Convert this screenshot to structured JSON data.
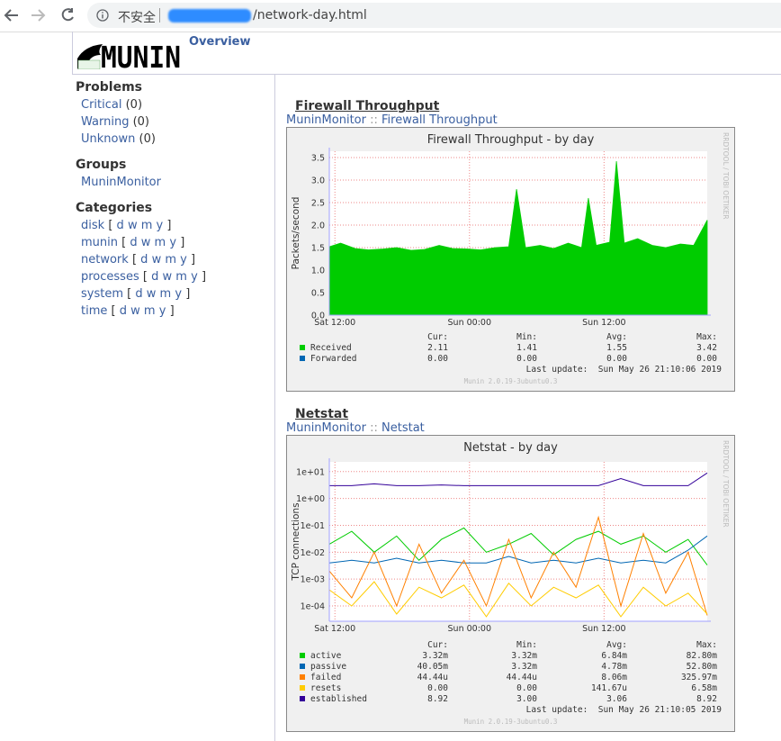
{
  "browser": {
    "security": "不安全",
    "url": "/network-day.html"
  },
  "header": {
    "logo": "MUNIN",
    "nav": "Overview"
  },
  "sidebar": {
    "problems": {
      "title": "Problems",
      "items": [
        {
          "label": "Critical",
          "count": "(0)"
        },
        {
          "label": "Warning",
          "count": "(0)"
        },
        {
          "label": "Unknown",
          "count": "(0)"
        }
      ]
    },
    "groups": {
      "title": "Groups",
      "items": [
        "MuninMonitor"
      ]
    },
    "categories": {
      "title": "Categories",
      "brackets": [
        "[",
        "]"
      ],
      "periods": [
        "d",
        "w",
        "m",
        "y"
      ],
      "items": [
        "disk",
        "munin",
        "network",
        "processes",
        "system",
        "time"
      ]
    }
  },
  "chart_data": [
    {
      "type": "area",
      "heading": "Firewall Throughput",
      "breadcrumb": [
        "MuninMonitor",
        "::",
        "Firewall Throughput"
      ],
      "title": "Firewall Throughput - by day",
      "ylabel": "Packets/second",
      "side_text": "RRDTOOL / TOBI OETIKER",
      "grid": true,
      "yscale": "linear",
      "ylim": [
        0,
        3.64
      ],
      "yticks": [
        {
          "value": 0,
          "label": "0.0"
        },
        {
          "value": 0.5,
          "label": "0.5"
        },
        {
          "value": 1,
          "label": "1.0"
        },
        {
          "value": 1.5,
          "label": "1.5"
        },
        {
          "value": 2,
          "label": "2.0"
        },
        {
          "value": 2.5,
          "label": "2.5"
        },
        {
          "value": 3,
          "label": "3.0"
        },
        {
          "value": 3.5,
          "label": "3.5"
        }
      ],
      "xlim": [
        11.5,
        45.2
      ],
      "xticks": [
        {
          "value": 12,
          "label": "Sat 12:00"
        },
        {
          "value": 24,
          "label": "Sun 00:00"
        },
        {
          "value": 36,
          "label": "Sun 12:00"
        }
      ],
      "x": [
        11.5,
        12.5,
        13.8,
        15,
        16.3,
        17.5,
        18.8,
        20,
        21.3,
        22.5,
        23.8,
        25,
        26.3,
        27.5,
        28.2,
        29,
        30.3,
        31.5,
        32.8,
        34,
        34.6,
        35.3,
        36.5,
        37.1,
        37.8,
        39,
        40.3,
        41.5,
        42.8,
        44,
        45.2
      ],
      "legend_headers": [
        "Cur:",
        "Min:",
        "Avg:",
        "Max:"
      ],
      "series": [
        {
          "name": "Received",
          "color": "#00cc00",
          "stats": [
            "2.11",
            "1.41",
            "1.55",
            "3.42"
          ],
          "values": [
            1.52,
            1.6,
            1.48,
            1.45,
            1.47,
            1.5,
            1.44,
            1.46,
            1.55,
            1.48,
            1.47,
            1.45,
            1.5,
            1.52,
            2.8,
            1.5,
            1.55,
            1.48,
            1.6,
            1.5,
            2.6,
            1.55,
            1.62,
            3.42,
            1.6,
            1.7,
            1.55,
            1.5,
            1.58,
            1.55,
            2.11
          ]
        },
        {
          "name": "Forwarded",
          "color": "#0066b3",
          "stats": [
            "0.00",
            "0.00",
            "0.00",
            "0.00"
          ],
          "values": [
            0,
            0,
            0,
            0,
            0,
            0,
            0,
            0,
            0,
            0,
            0,
            0,
            0,
            0,
            0,
            0,
            0,
            0,
            0,
            0,
            0,
            0,
            0,
            0,
            0,
            0,
            0,
            0,
            0,
            0,
            0
          ]
        }
      ],
      "last_update": "Last update:  Sun May 26 21:10:06 2019",
      "footer": "Munin 2.0.19-3ubuntu0.3"
    },
    {
      "type": "line",
      "heading": "Netstat",
      "breadcrumb": [
        "MuninMonitor",
        "::",
        "Netstat"
      ],
      "title": "Netstat - by day",
      "ylabel": "TCP connections",
      "side_text": "RRDTOOL / TOBI OETIKER",
      "grid": true,
      "yscale": "log",
      "ylim": [
        2.7e-05,
        23
      ],
      "yticks": [
        {
          "value": 0.0001,
          "label": "1e-04"
        },
        {
          "value": 0.001,
          "label": "1e-03"
        },
        {
          "value": 0.01,
          "label": "1e-02"
        },
        {
          "value": 0.1,
          "label": "1e-01"
        },
        {
          "value": 1,
          "label": "1e+00"
        },
        {
          "value": 10,
          "label": "1e+01"
        }
      ],
      "xlim": [
        11.5,
        45.2
      ],
      "xticks": [
        {
          "value": 12,
          "label": "Sat 12:00"
        },
        {
          "value": 24,
          "label": "Sun 00:00"
        },
        {
          "value": 36,
          "label": "Sun 12:00"
        }
      ],
      "x": [
        11.5,
        13.5,
        15.5,
        17.5,
        19.5,
        21.5,
        23.5,
        25.5,
        27.5,
        29.5,
        31.5,
        33.5,
        35.5,
        37.5,
        39.5,
        41.5,
        43.5,
        45.2
      ],
      "legend_headers": [
        "Cur:",
        "Min:",
        "Avg:",
        "Max:"
      ],
      "series": [
        {
          "name": "active",
          "color": "#00cc00",
          "stats": [
            "3.32m",
            "3.32m",
            "6.84m",
            "82.80m"
          ],
          "values": [
            0.02,
            0.06,
            0.01,
            0.04,
            0.005,
            0.03,
            0.08,
            0.01,
            0.02,
            0.05,
            0.008,
            0.03,
            0.06,
            0.02,
            0.04,
            0.01,
            0.03,
            0.00332
          ]
        },
        {
          "name": "passive",
          "color": "#0066b3",
          "stats": [
            "40.05m",
            "3.32m",
            "4.78m",
            "52.80m"
          ],
          "values": [
            0.004,
            0.005,
            0.004,
            0.006,
            0.004,
            0.005,
            0.004,
            0.004,
            0.007,
            0.004,
            0.005,
            0.004,
            0.006,
            0.004,
            0.005,
            0.004,
            0.012,
            0.04005
          ]
        },
        {
          "name": "failed",
          "color": "#ff8000",
          "stats": [
            "44.44u",
            "44.44u",
            "8.06m",
            "325.97m"
          ],
          "values": [
            0.002,
            0.0002,
            0.01,
            0.0001,
            0.02,
            0.0003,
            0.005,
            0.0001,
            0.03,
            0.0002,
            0.01,
            0.0005,
            0.2,
            0.0001,
            0.05,
            0.0003,
            0.01,
            4.444e-05
          ]
        },
        {
          "name": "resets",
          "color": "#ffcc00",
          "stats": [
            "0.00",
            "0.00",
            "141.67u",
            "6.58m"
          ],
          "values": [
            0.0004,
            0.0001,
            0.0008,
            5e-05,
            0.0005,
            0.0002,
            0.0006,
            4e-05,
            0.0007,
            0.0001,
            0.0005,
            0.0002,
            0.0006,
            4e-05,
            0.0005,
            0.0001,
            0.0003,
            5e-05
          ]
        },
        {
          "name": "established",
          "color": "#330099",
          "stats": [
            "8.92",
            "3.00",
            "3.06",
            "8.92"
          ],
          "values": [
            3,
            3,
            3.5,
            3,
            3,
            3.2,
            3,
            3,
            3,
            3,
            3,
            3,
            3,
            5.5,
            3,
            3,
            3,
            8.92
          ]
        }
      ],
      "last_update": "Last update:  Sun May 26 21:10:05 2019",
      "footer": "Munin 2.0.19-3ubuntu0.3"
    }
  ]
}
